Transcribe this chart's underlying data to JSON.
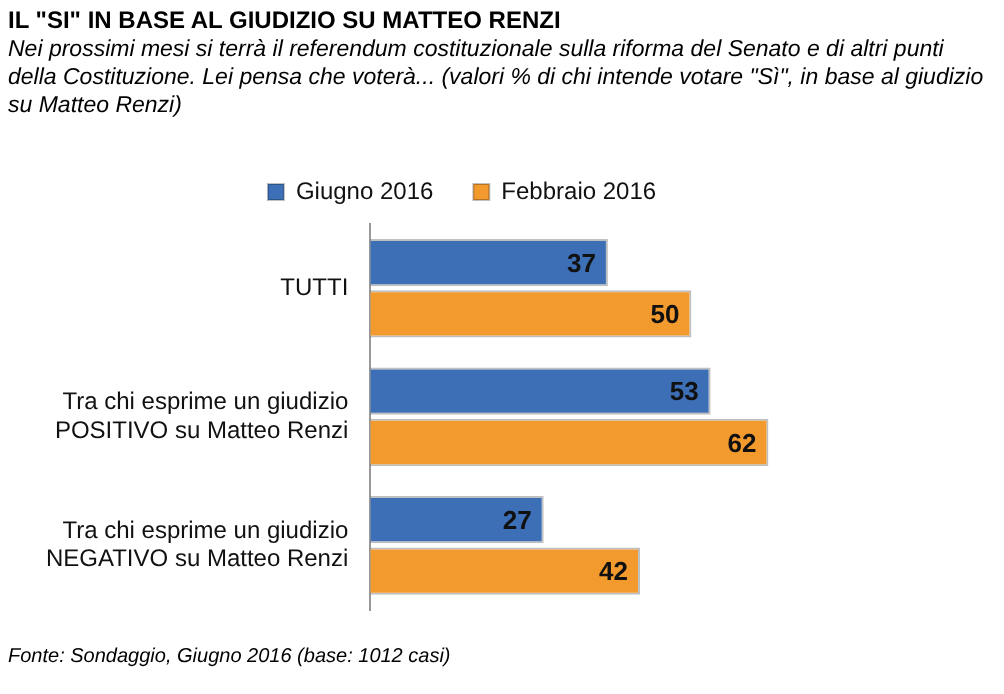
{
  "chart_data": {
    "type": "bar",
    "orientation": "horizontal",
    "title": "IL \"SI\" IN BASE AL GIUDIZIO SU MATTEO RENZI",
    "subtitle": "Nei prossimi mesi si terrà il referendum costituzionale sulla riforma del Senato e di altri punti della Costituzione. Lei pensa che voterà... (valori % di chi intende votare \"Sì\", in base al giudizio su Matteo Renzi)",
    "categories": [
      "TUTTI",
      "Tra chi esprime un giudizio POSITIVO su Matteo Renzi",
      "Tra chi esprime un giudizio NEGATIVO su Matteo Renzi"
    ],
    "series": [
      {
        "name": "Giugno 2016",
        "color": "#3d6fb6",
        "values": [
          37,
          53,
          27
        ]
      },
      {
        "name": "Febbraio 2016",
        "color": "#f39a2e",
        "values": [
          50,
          62,
          42
        ]
      }
    ],
    "data_labels": true,
    "legend": "top",
    "grid": false,
    "annotations": [
      "Fonte: Sondaggio, Giugno 2016 (base: 1012 casi)"
    ]
  }
}
